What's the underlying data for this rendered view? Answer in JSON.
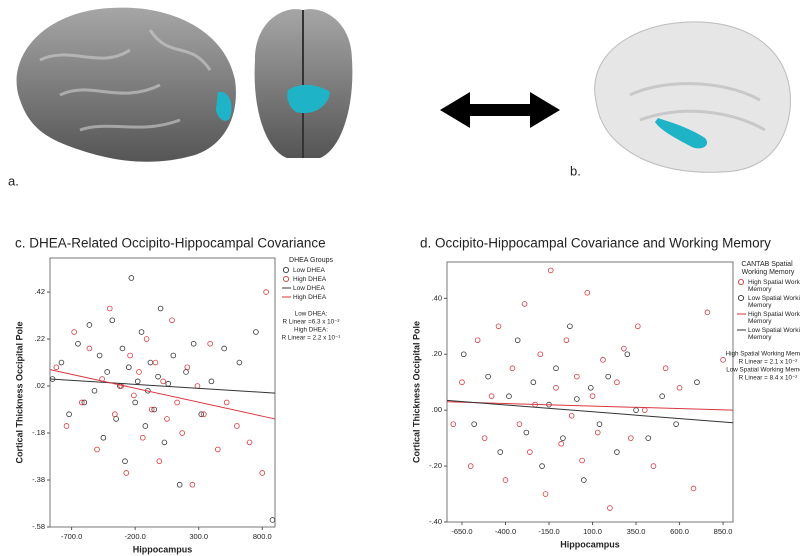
{
  "figure": {
    "labels": [
      "a.",
      "b."
    ]
  },
  "chart_data": [
    {
      "type": "scatter",
      "title": "c. DHEA-Related Occipito-Hippocampal Covariance",
      "xlabel": "Hippocampus",
      "ylabel": "Cortical Thickness Occipital Pole",
      "xlim": [
        -870,
        900
      ],
      "ylim": [
        -0.58,
        0.565
      ],
      "xticks": [
        {
          "value": -700,
          "label": "-700.0"
        },
        {
          "value": -200,
          "label": "-200.0"
        },
        {
          "value": 300,
          "label": "300.0"
        },
        {
          "value": 800,
          "label": "800.0"
        }
      ],
      "yticks": [
        {
          "value": 0.42,
          "label": ".42"
        },
        {
          "value": 0.22,
          "label": ".22"
        },
        {
          "value": 0.02,
          "label": ".02"
        },
        {
          "value": -0.18,
          "label": "-.18"
        },
        {
          "value": -0.38,
          "label": "-.38"
        },
        {
          "value": -0.58,
          "label": "-.58"
        }
      ],
      "legend_title": "DHEA Groups",
      "series": [
        {
          "name": "Low DHEA",
          "color": "#333333",
          "x": [
            -850,
            -780,
            -720,
            -650,
            -600,
            -560,
            -520,
            -480,
            -450,
            -420,
            -380,
            -350,
            -320,
            -300,
            -280,
            -250,
            -230,
            -200,
            -180,
            -150,
            -120,
            -100,
            -80,
            -50,
            -20,
            0,
            30,
            60,
            100,
            150,
            200,
            260,
            320,
            400,
            500,
            620,
            750,
            880
          ],
          "values": [
            0.05,
            0.12,
            -0.1,
            0.2,
            -0.05,
            0.28,
            0.0,
            0.15,
            -0.2,
            0.08,
            0.3,
            -0.12,
            0.02,
            0.18,
            -0.3,
            0.1,
            0.48,
            -0.05,
            0.04,
            0.25,
            -0.15,
            0.0,
            0.12,
            -0.08,
            0.06,
            0.35,
            -0.22,
            0.03,
            0.15,
            -0.4,
            0.08,
            0.2,
            -0.1,
            0.04,
            0.18,
            0.12,
            0.25,
            -0.55
          ]
        },
        {
          "name": "High DHEA",
          "color": "#d9363e",
          "x": [
            -820,
            -740,
            -680,
            -620,
            -560,
            -500,
            -460,
            -400,
            -360,
            -310,
            -270,
            -240,
            -210,
            -170,
            -140,
            -110,
            -70,
            -40,
            -10,
            20,
            50,
            90,
            130,
            170,
            210,
            250,
            290,
            340,
            390,
            450,
            520,
            600,
            700,
            800,
            830
          ],
          "values": [
            0.1,
            -0.15,
            0.25,
            -0.05,
            0.18,
            -0.25,
            0.05,
            0.35,
            -0.1,
            0.02,
            -0.35,
            0.15,
            -0.02,
            0.08,
            -0.2,
            0.22,
            -0.08,
            0.12,
            -0.3,
            0.04,
            -0.12,
            0.3,
            -0.05,
            -0.18,
            0.1,
            -0.4,
            0.02,
            -0.1,
            0.2,
            -0.25,
            -0.05,
            -0.15,
            -0.22,
            -0.35,
            0.42
          ]
        }
      ],
      "fit_lines": [
        {
          "name": "Low DHEA",
          "color": "#333333",
          "x": [
            -870,
            900
          ],
          "values": [
            0.05,
            -0.01
          ]
        },
        {
          "name": "High DHEA",
          "color": "#d9363e",
          "x": [
            -870,
            900
          ],
          "values": [
            0.09,
            -0.12
          ]
        }
      ],
      "annotations": [
        "Low DHEA:",
        "R Linear =6.3 x 10⁻²",
        "High DHEA:",
        "R Linear = 2.2 x 10⁻¹"
      ]
    },
    {
      "type": "scatter",
      "title": "d. Occipito-Hippocampal Covariance and Working Memory",
      "xlabel": "Hippocampus",
      "ylabel": "Cortical Thickness Occipital Pole",
      "xlim": [
        -736,
        907
      ],
      "ylim": [
        -0.4,
        0.53
      ],
      "xticks": [
        {
          "value": -650,
          "label": "-650.0"
        },
        {
          "value": -400,
          "label": "-400.0"
        },
        {
          "value": -150,
          "label": "-150.0"
        },
        {
          "value": 100,
          "label": "100.0"
        },
        {
          "value": 350,
          "label": "350.0"
        },
        {
          "value": 600,
          "label": "600.0"
        },
        {
          "value": 850,
          "label": "850.0"
        }
      ],
      "yticks": [
        {
          "value": 0.4,
          "label": ".40"
        },
        {
          "value": 0.2,
          "label": ".20"
        },
        {
          "value": 0,
          "label": ".00"
        },
        {
          "value": -0.2,
          "label": "-.20"
        },
        {
          "value": -0.4,
          "label": "-.40"
        }
      ],
      "legend_title": "CANTAB Spatial Working Memory",
      "series": [
        {
          "name": "High Spatial Working Memory",
          "color": "#d9363e",
          "x": [
            -700,
            -650,
            -600,
            -560,
            -520,
            -480,
            -440,
            -400,
            -360,
            -320,
            -290,
            -260,
            -230,
            -200,
            -170,
            -140,
            -110,
            -80,
            -50,
            -20,
            10,
            40,
            70,
            100,
            130,
            160,
            200,
            240,
            280,
            320,
            360,
            400,
            450,
            520,
            600,
            680,
            760,
            850
          ],
          "values": [
            -0.05,
            0.1,
            -0.2,
            0.25,
            -0.1,
            0.05,
            0.3,
            -0.25,
            0.15,
            -0.05,
            0.38,
            -0.15,
            0.02,
            0.2,
            -0.3,
            0.5,
            0.08,
            -0.12,
            0.25,
            -0.02,
            0.12,
            -0.18,
            0.42,
            0.05,
            -0.08,
            0.18,
            -0.35,
            0.1,
            0.22,
            -0.1,
            0.3,
            0.0,
            -0.2,
            0.15,
            0.08,
            -0.28,
            0.35,
            0.18
          ]
        },
        {
          "name": "Low Spatial Working Memory",
          "color": "#333333",
          "x": [
            -640,
            -580,
            -500,
            -430,
            -380,
            -330,
            -280,
            -240,
            -190,
            -150,
            -110,
            -70,
            -30,
            10,
            50,
            90,
            140,
            190,
            240,
            300,
            350,
            420,
            500,
            580,
            700
          ],
          "values": [
            0.2,
            -0.05,
            0.12,
            -0.15,
            0.05,
            0.25,
            -0.08,
            0.1,
            -0.2,
            0.02,
            0.15,
            -0.1,
            0.3,
            0.04,
            -0.25,
            0.08,
            -0.05,
            0.12,
            -0.15,
            0.2,
            0.0,
            -0.1,
            0.05,
            -0.05,
            0.1
          ]
        }
      ],
      "fit_lines": [
        {
          "name": "High Spatial Working Memory",
          "color": "#d9363e",
          "x": [
            -736,
            907
          ],
          "values": [
            0.03,
            0.0
          ]
        },
        {
          "name": "Low Spatial Working Memory",
          "color": "#333333",
          "x": [
            -736,
            907
          ],
          "values": [
            0.035,
            -0.045
          ]
        }
      ],
      "annotations": [
        "High Spatial Working Memory:",
        "R Linear = 2.1 x 10⁻²",
        "Low Spatial Working Memory:",
        "R Linear = 8.4 x 10⁻²"
      ]
    }
  ]
}
